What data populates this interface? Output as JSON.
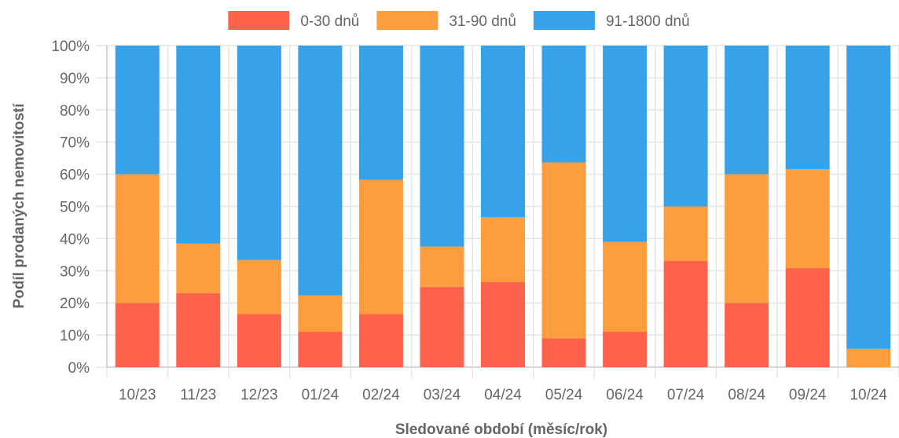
{
  "chart_data": {
    "type": "bar",
    "stacked": true,
    "percent": true,
    "categories": [
      "10/23",
      "11/23",
      "12/23",
      "01/24",
      "02/24",
      "03/24",
      "04/24",
      "05/24",
      "06/24",
      "07/24",
      "08/24",
      "09/24",
      "10/24"
    ],
    "series": [
      {
        "name": "0-30 dnů",
        "color": "#fe624b",
        "values": [
          20,
          23,
          16.5,
          11,
          16.5,
          25,
          26.5,
          9,
          11,
          33,
          20,
          30.8,
          0
        ]
      },
      {
        "name": "31-90 dnů",
        "color": "#fd9d3e",
        "values": [
          40,
          15.5,
          16.8,
          11.3,
          41.8,
          12.5,
          20.2,
          54.7,
          28,
          17,
          40,
          30.8,
          5.7
        ]
      },
      {
        "name": "91-1800 dnů",
        "color": "#37a2e9",
        "values": [
          40,
          61.5,
          66.7,
          77.7,
          41.7,
          62.5,
          53.3,
          36.3,
          61,
          50,
          40,
          38.4,
          94.3
        ]
      }
    ],
    "yticks": [
      "0%",
      "10%",
      "20%",
      "30%",
      "40%",
      "50%",
      "60%",
      "70%",
      "80%",
      "90%",
      "100%"
    ],
    "xlabel": "Sledované období (měsíc/rok)",
    "ylabel": "Podíl prodaných nemovitostí",
    "ylim": [
      0,
      100
    ],
    "legend_position": "top",
    "grid": true
  }
}
